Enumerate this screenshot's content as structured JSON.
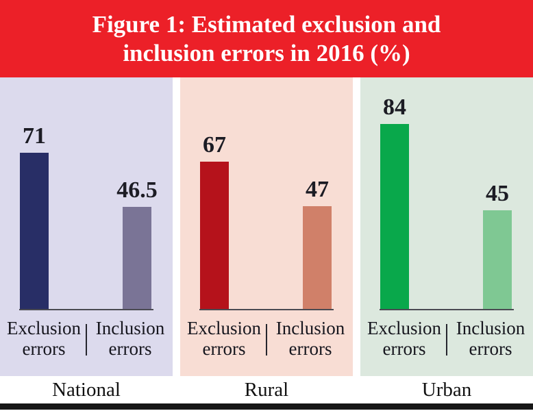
{
  "header": {
    "title_line1": "Figure 1: Estimated exclusion and",
    "title_line2": "inclusion errors in 2016 (%)",
    "bg_color": "#ec2028",
    "text_color": "#ffffff"
  },
  "chart_data": {
    "type": "bar",
    "title": "Figure 1: Estimated exclusion and inclusion errors in 2016 (%)",
    "value_unit": "%",
    "year": "2016",
    "categories": [
      "National",
      "Rural",
      "Urban"
    ],
    "series": [
      {
        "name": "Exclusion errors",
        "values": [
          71,
          67,
          84
        ]
      },
      {
        "name": "Inclusion errors",
        "values": [
          46.5,
          47,
          45
        ]
      }
    ],
    "groups": [
      {
        "label": "National",
        "panel_bg": "#dcdaed",
        "bars": [
          {
            "name": "Exclusion errors",
            "value": 71,
            "color": "#282e66"
          },
          {
            "name": "Inclusion errors",
            "value": 46.5,
            "color": "#7a7496"
          }
        ]
      },
      {
        "label": "Rural",
        "panel_bg": "#f8ddd4",
        "bars": [
          {
            "name": "Exclusion errors",
            "value": 67,
            "color": "#b5121b"
          },
          {
            "name": "Inclusion errors",
            "value": 47,
            "color": "#d08069"
          }
        ]
      },
      {
        "label": "Urban",
        "panel_bg": "#dce8de",
        "bars": [
          {
            "name": "Exclusion errors",
            "value": 84,
            "color": "#09a84b"
          },
          {
            "name": "Inclusion errors",
            "value": 45,
            "color": "#7fc893"
          }
        ]
      }
    ],
    "ylim": [
      0,
      100
    ],
    "legend": false,
    "grid": false,
    "data_labels_visible": true,
    "baseline_color": "#4a4a52",
    "bottom_rule_color": "#171717"
  }
}
